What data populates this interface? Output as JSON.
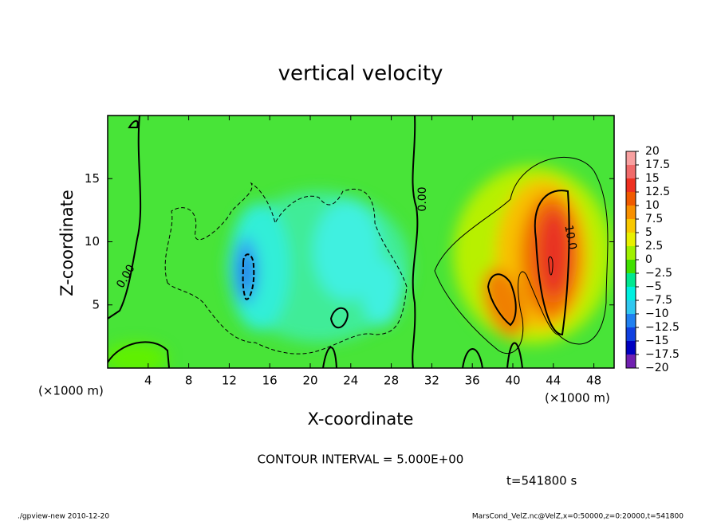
{
  "chart_data": {
    "type": "contour",
    "title": "vertical velocity",
    "xlabel": "X-coordinate",
    "ylabel": "Z-coordinate",
    "xunit": "(×1000 m)",
    "xlim": [
      0,
      50
    ],
    "ylim": [
      0,
      20
    ],
    "xticks": [
      4,
      8,
      12,
      16,
      20,
      24,
      28,
      32,
      36,
      40,
      44,
      48
    ],
    "yticks": [
      5,
      10,
      15
    ],
    "colorbar_ticks": [
      20,
      17.5,
      15,
      12.5,
      10,
      7.5,
      5,
      2.5,
      0,
      {
        "value": -2.5,
        "label": "−2.5"
      },
      {
        "value": -5,
        "label": "−5"
      },
      {
        "value": -7.5,
        "label": "−7.5"
      },
      {
        "value": -10,
        "label": "−10"
      },
      {
        "value": -12.5,
        "label": "−12.5"
      },
      {
        "value": -15,
        "label": "−15"
      },
      {
        "value": -17.5,
        "label": "−17.5"
      },
      {
        "value": -20,
        "label": "−20"
      }
    ],
    "colorbar_colors": [
      "#f8a0a0",
      "#f06a6a",
      "#ee3020",
      "#f05a00",
      "#f89000",
      "#f8c800",
      "#e8f000",
      "#a0f000",
      "#40e000",
      "#00e890",
      "#00f0e0",
      "#30c8f0",
      "#2080f0",
      "#1040e0",
      "#0000c0",
      "#7020b0"
    ],
    "contour_labels": [
      "0.00",
      "0.00",
      "10.0"
    ],
    "contour_interval": "CONTOUR INTERVAL = 5.000E+00",
    "time_label": "t=541800 s",
    "footer_left": "./gpview-new  2010-12-20",
    "footer_right": "MarsCond_VelZ.nc@VelZ,x=0:50000,z=0:20000,t=541800"
  }
}
